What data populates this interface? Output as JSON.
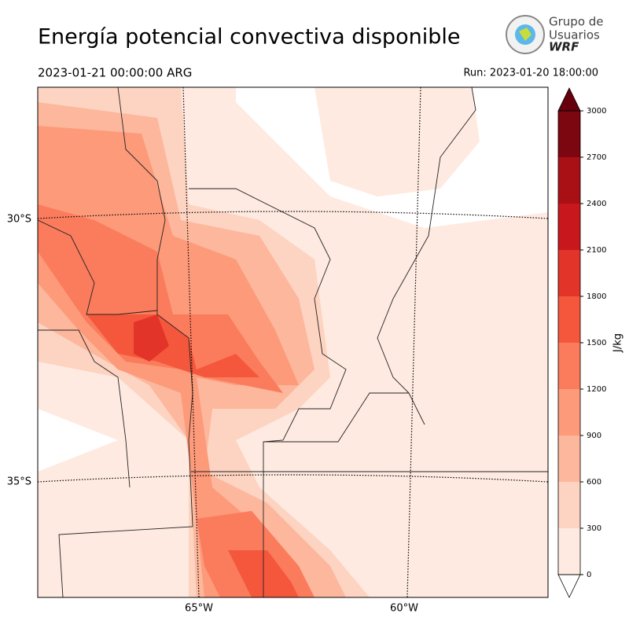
{
  "header": {
    "title": "Energía potencial convectiva disponible",
    "valid_time": "2023-01-21 00:00:00 ARG",
    "run": "Run: 2023-01-20 18:00:00"
  },
  "logo": {
    "line1": "Grupo de",
    "line2": "Usuarios",
    "line3": "WRF"
  },
  "map": {
    "lat_labels": [
      "30°S",
      "35°S"
    ],
    "lon_labels": [
      "65°W",
      "60°W"
    ]
  },
  "colorbar": {
    "label": "J/kg",
    "ticks": [
      0,
      300,
      600,
      900,
      1200,
      1500,
      1800,
      2100,
      2400,
      2700,
      3000
    ],
    "colors": [
      "#feeae0",
      "#fdd3c1",
      "#fcb79c",
      "#fc9a7a",
      "#fb7c5c",
      "#f5573c",
      "#e33429",
      "#c9181d",
      "#a91016",
      "#7d0711"
    ],
    "under_color": "#ffffff",
    "over_color": "#67000d"
  }
}
